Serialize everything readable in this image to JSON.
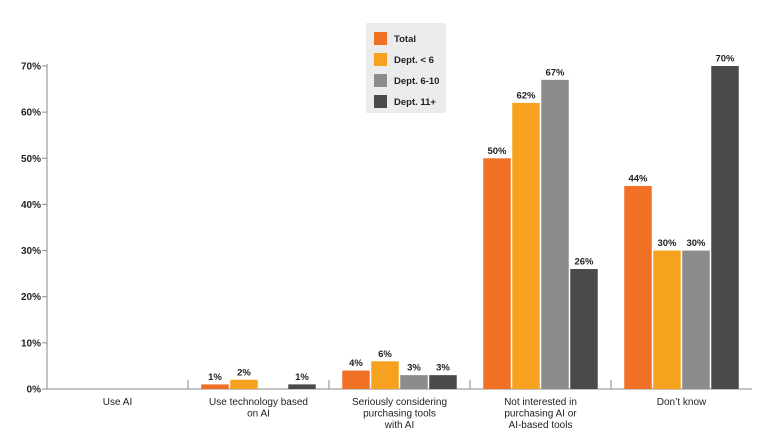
{
  "chart_data": {
    "type": "bar",
    "title": "",
    "xlabel": "",
    "ylabel": "",
    "ylim": [
      0,
      70
    ],
    "yticks": [
      "0%",
      "10%",
      "20%",
      "30%",
      "40%",
      "50%",
      "60%",
      "70%"
    ],
    "grid": false,
    "legend_position": "top-center",
    "categories": [
      [
        "Use AI"
      ],
      [
        "Use technology based",
        "on AI"
      ],
      [
        "Seriously considering",
        "purchasing tools",
        "with AI"
      ],
      [
        "Not interested in",
        "purchasing AI or",
        "AI-based tools"
      ],
      [
        "Don’t know"
      ]
    ],
    "series": [
      {
        "name": "Total",
        "color": "#f07125",
        "values": [
          null,
          1,
          4,
          50,
          44
        ],
        "labels": [
          "",
          "1%",
          "4%",
          "50%",
          "44%"
        ]
      },
      {
        "name": "Dept. < 6",
        "color": "#f6a21e",
        "values": [
          null,
          2,
          6,
          62,
          30
        ],
        "labels": [
          "",
          "2%",
          "6%",
          "62%",
          "30%"
        ]
      },
      {
        "name": "Dept. 6-10",
        "color": "#8c8c8c",
        "values": [
          null,
          null,
          3,
          67,
          30
        ],
        "labels": [
          "",
          "",
          "3%",
          "67%",
          "30%"
        ]
      },
      {
        "name": "Dept. 11+",
        "color": "#4a4a4c",
        "values": [
          null,
          1,
          3,
          26,
          70
        ],
        "labels": [
          "",
          "1%",
          "3%",
          "26%",
          "70%"
        ]
      }
    ]
  }
}
